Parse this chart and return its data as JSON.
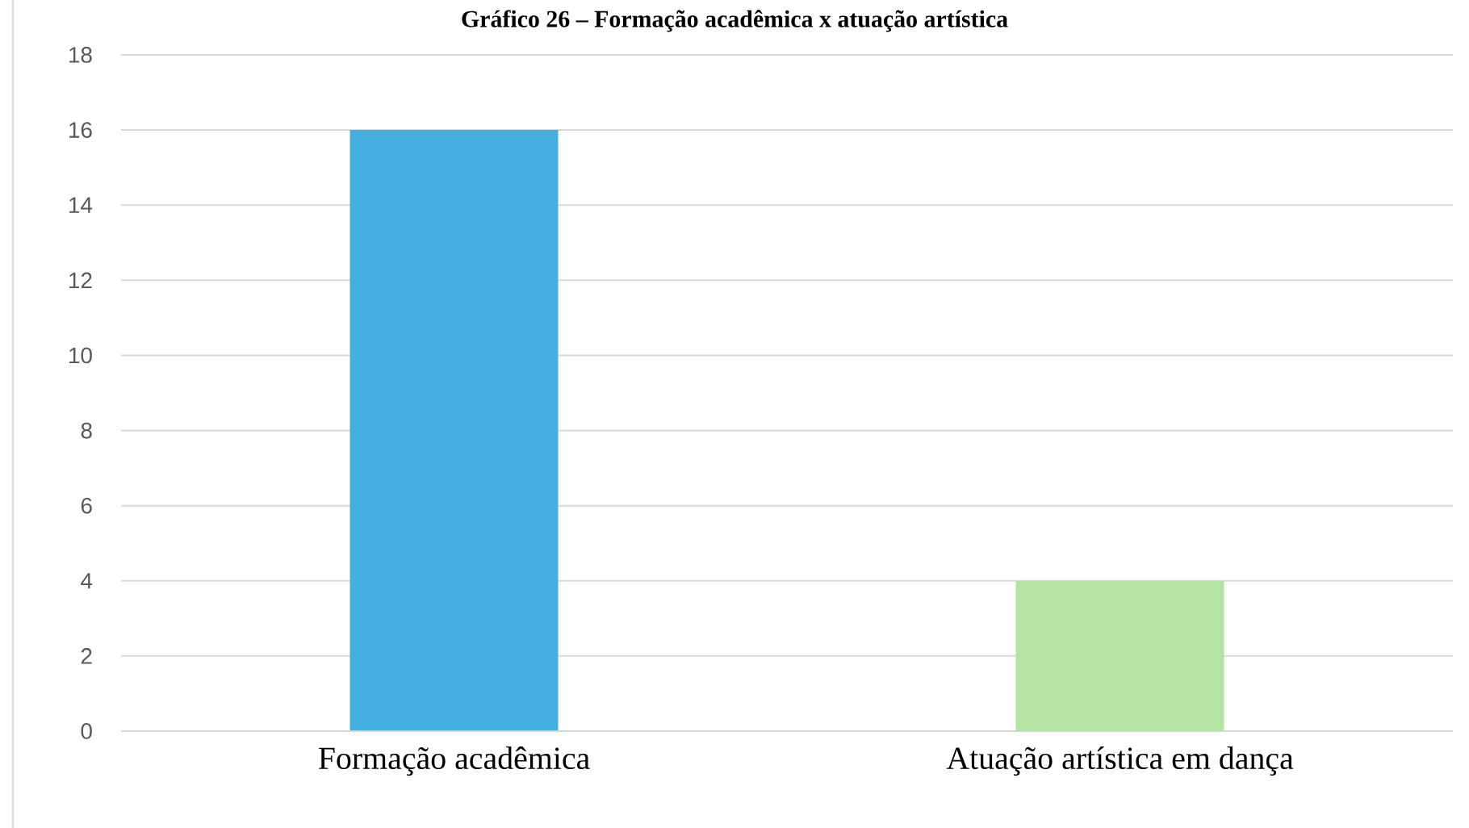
{
  "chart_data": {
    "type": "bar",
    "title": "Gráfico 26 – Formação acadêmica x atuação artística",
    "categories": [
      "Formação acadêmica",
      "Atuação artística em dança"
    ],
    "values": [
      16,
      4
    ],
    "colors": [
      "#45b0e0",
      "#b3e4a1"
    ],
    "ylim": [
      0,
      18
    ],
    "yticks": [
      0,
      2,
      4,
      6,
      8,
      10,
      12,
      14,
      16,
      18
    ],
    "grid": "y"
  }
}
